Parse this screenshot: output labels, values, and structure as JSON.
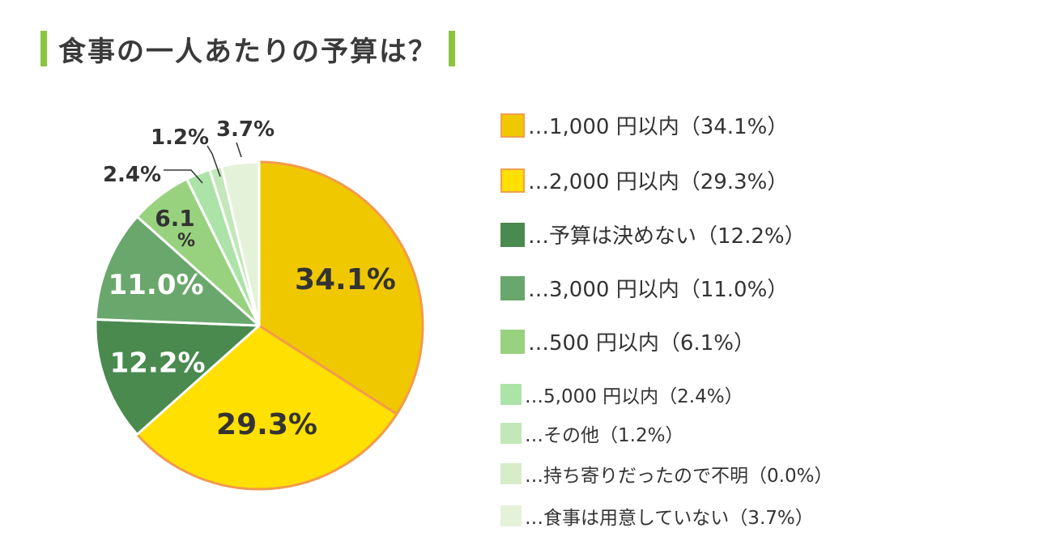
{
  "title": "食事の一人あたりの予算は？",
  "chart_data": {
    "type": "pie",
    "title": "食事の一人あたりの予算は？",
    "slices": [
      {
        "label": "…1,000 円以内（34.1%）",
        "value": 34.1,
        "display": "34.1%",
        "color": "#f0c800"
      },
      {
        "label": "…2,000 円以内（29.3%）",
        "value": 29.3,
        "display": "29.3%",
        "color": "#ffe000"
      },
      {
        "label": "…予算は決めない（12.2%）",
        "value": 12.2,
        "display": "12.2%",
        "color": "#4a8a4f"
      },
      {
        "label": "…3,000 円以内（11.0%）",
        "value": 11.0,
        "display": "11.0%",
        "color": "#6aa76c"
      },
      {
        "label": "…500 円以内（6.1%）",
        "value": 6.1,
        "display": "6.1%",
        "color": "#99d27f"
      },
      {
        "label": "…5,000 円以内（2.4%）",
        "value": 2.4,
        "display": "2.4%",
        "color": "#ace3a8"
      },
      {
        "label": "…その他（1.2%）",
        "value": 1.2,
        "display": "1.2%",
        "color": "#c2e7b8"
      },
      {
        "label": "…持ち寄りだったので不明（0.0%）",
        "value": 0.0,
        "display": "0.0%",
        "color": "#d7ecc9"
      },
      {
        "label": "…食事は用意していない（3.7%）",
        "value": 3.7,
        "display": "3.7%",
        "color": "#e4f2d9"
      }
    ]
  }
}
